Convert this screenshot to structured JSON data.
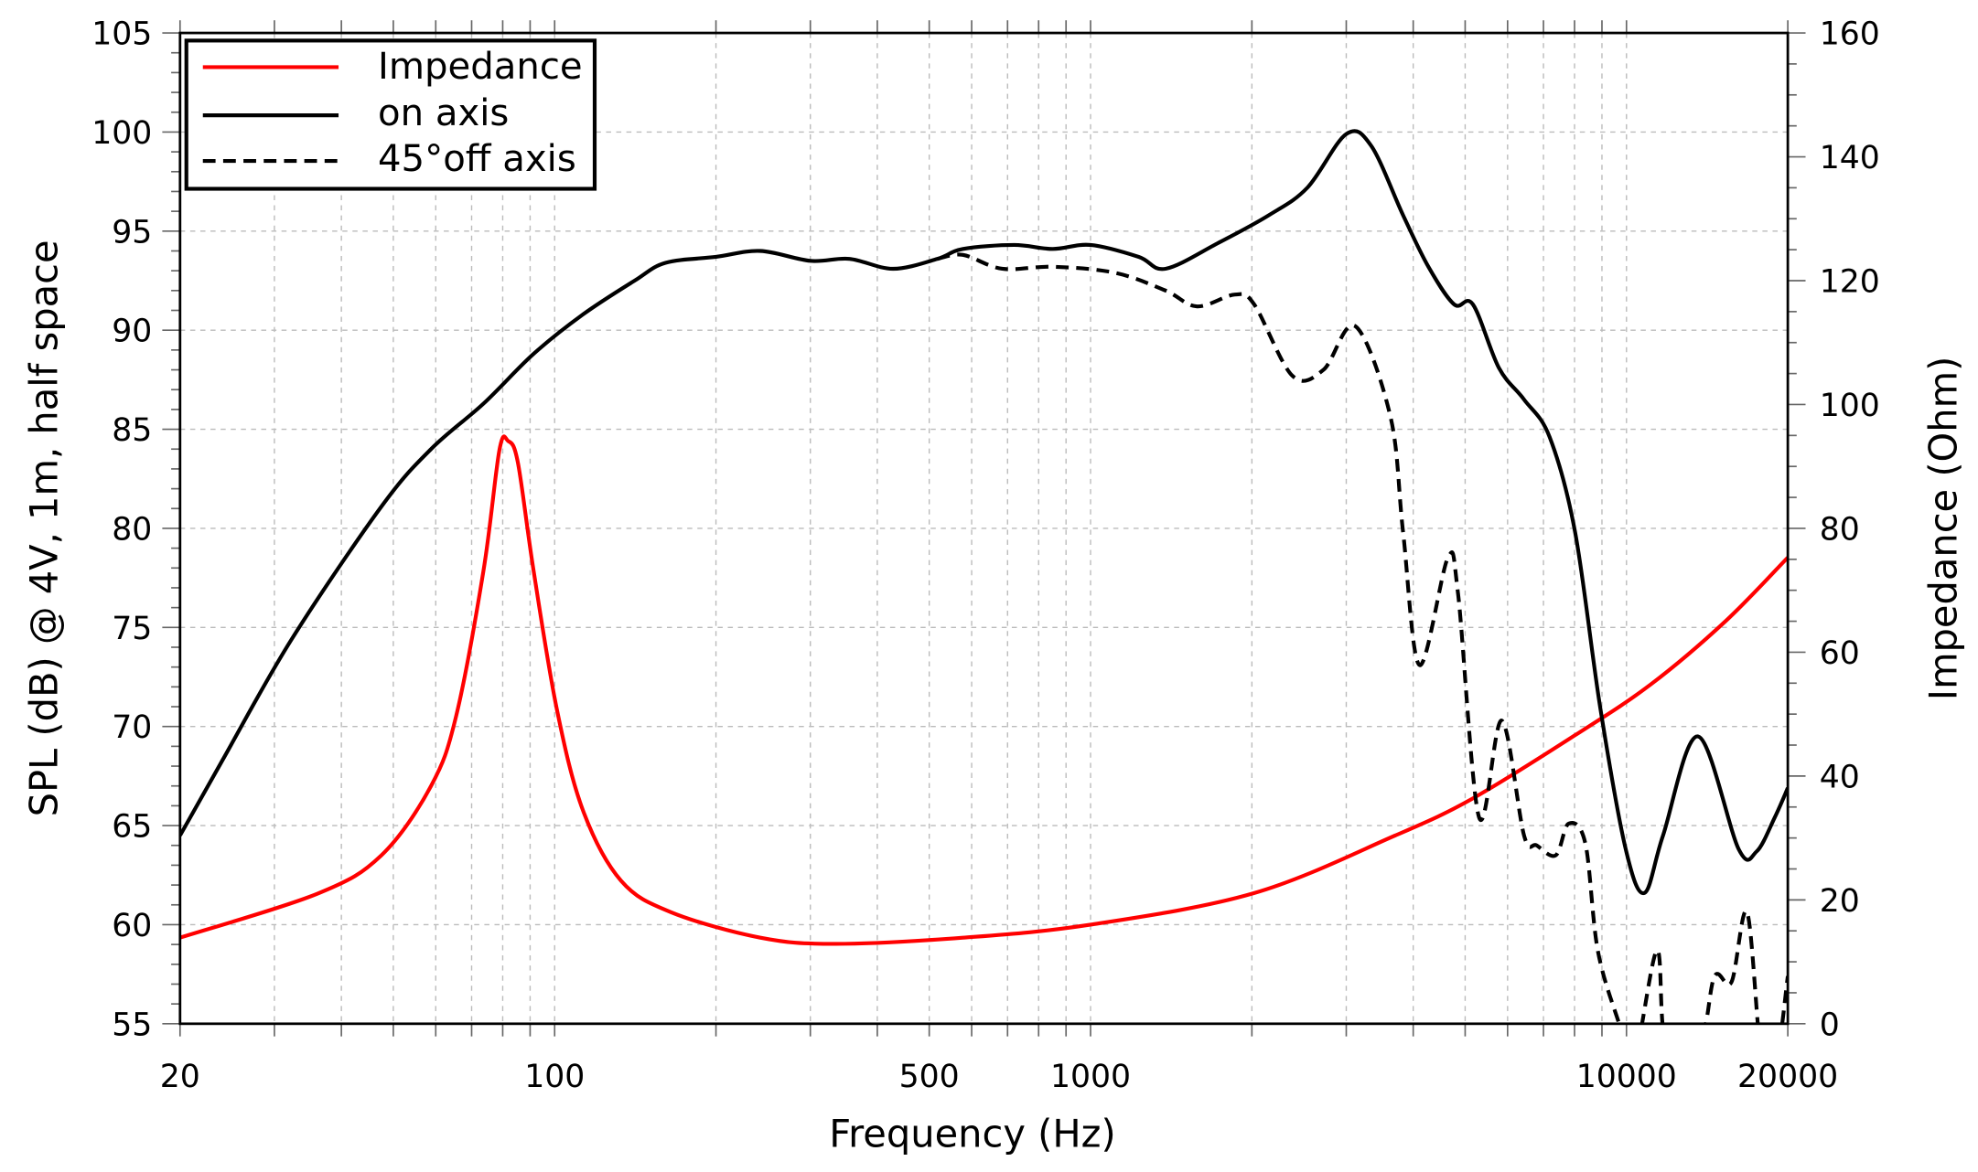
{
  "chart_data": {
    "type": "line",
    "title": "",
    "xlabel": "Frequency (Hz)",
    "ylabel": "SPL (dB) @ 4V, 1m, half space",
    "y2label": "Impedance (Ohm)",
    "xscale": "log",
    "xlim": [
      20,
      20000
    ],
    "ylim": [
      55,
      105
    ],
    "y2lim": [
      0,
      160
    ],
    "grid": true,
    "legend_position": "top-left",
    "x_tick_labels": [
      "20",
      "100",
      "500",
      "1000",
      "10000",
      "20000"
    ],
    "y_tick_labels": [
      "55",
      "60",
      "65",
      "70",
      "75",
      "80",
      "85",
      "90",
      "95",
      "100",
      "105"
    ],
    "y2_tick_labels": [
      "0",
      "20",
      "40",
      "60",
      "80",
      "100",
      "120",
      "140",
      "160"
    ],
    "series": [
      {
        "name": "Impedance",
        "axis": "right",
        "color": "#ff0000",
        "style": "solid",
        "x": [
          20,
          36.1,
          47.5,
          58.8,
          65.5,
          73.7,
          78.9,
          81.9,
          85.4,
          91.3,
          101,
          113,
          133,
          165,
          242,
          334,
          578,
          1000,
          2020,
          3680,
          5170,
          8020,
          11100,
          15300,
          20000
        ],
        "y": [
          13.9,
          21,
          27.2,
          38.4,
          49.7,
          73.3,
          92.7,
          94.1,
          90.6,
          73.3,
          50.7,
          34.4,
          23.1,
          18,
          13.9,
          12.9,
          13.9,
          16,
          21.1,
          30.3,
          36.4,
          46.6,
          54.8,
          65,
          75.3
        ]
      },
      {
        "name": "on axis",
        "axis": "left",
        "color": "#000000",
        "style": "solid",
        "x": [
          20,
          24,
          32.3,
          47.5,
          58.8,
          73.7,
          91.3,
          113,
          141,
          161,
          200,
          242,
          300,
          355,
          428,
          518,
          578,
          720,
          850,
          1000,
          1230,
          1380,
          1730,
          2150,
          2540,
          3000,
          3340,
          3830,
          4270,
          4770,
          5170,
          5780,
          6440,
          7190,
          8020,
          8940,
          9970,
          10800,
          11700,
          13600,
          16200,
          17500,
          18900,
          20000
        ],
        "y": [
          64.5,
          68.3,
          74.4,
          81.1,
          84,
          86.3,
          88.8,
          90.8,
          92.5,
          93.4,
          93.7,
          94,
          93.5,
          93.6,
          93.1,
          93.6,
          94.1,
          94.3,
          94.1,
          94.3,
          93.7,
          93.1,
          94.4,
          95.8,
          97.2,
          99.9,
          99.3,
          95.8,
          93.2,
          91.3,
          91.3,
          88.1,
          86.5,
          84.6,
          79.8,
          70.9,
          63.8,
          61.6,
          64.5,
          69.5,
          63.8,
          63.7,
          65.4,
          66.9
        ]
      },
      {
        "name": "45°off axis",
        "axis": "left",
        "color": "#000000",
        "style": "dashed",
        "x": [
          518,
          578,
          684,
          850,
          1110,
          1380,
          1580,
          1860,
          2020,
          2380,
          2720,
          3120,
          3630,
          3830,
          4110,
          4640,
          4850,
          5310,
          5850,
          6440,
          6800,
          7380,
          7800,
          8380,
          8840,
          9690,
          10300,
          11400,
          11850,
          13700,
          14600,
          15700,
          16800,
          17900,
          19000,
          20000
        ],
        "y": [
          93.6,
          93.8,
          93.1,
          93.2,
          92.9,
          92,
          91.2,
          91.8,
          91.3,
          87.7,
          88,
          90.2,
          85.6,
          79.8,
          73.1,
          78.5,
          76.7,
          65.4,
          70.3,
          64.5,
          64,
          63.5,
          65.1,
          64.1,
          58.7,
          55,
          53,
          58.7,
          54,
          54,
          57.4,
          57.1,
          60.6,
          53,
          53,
          57.4
        ]
      }
    ]
  }
}
